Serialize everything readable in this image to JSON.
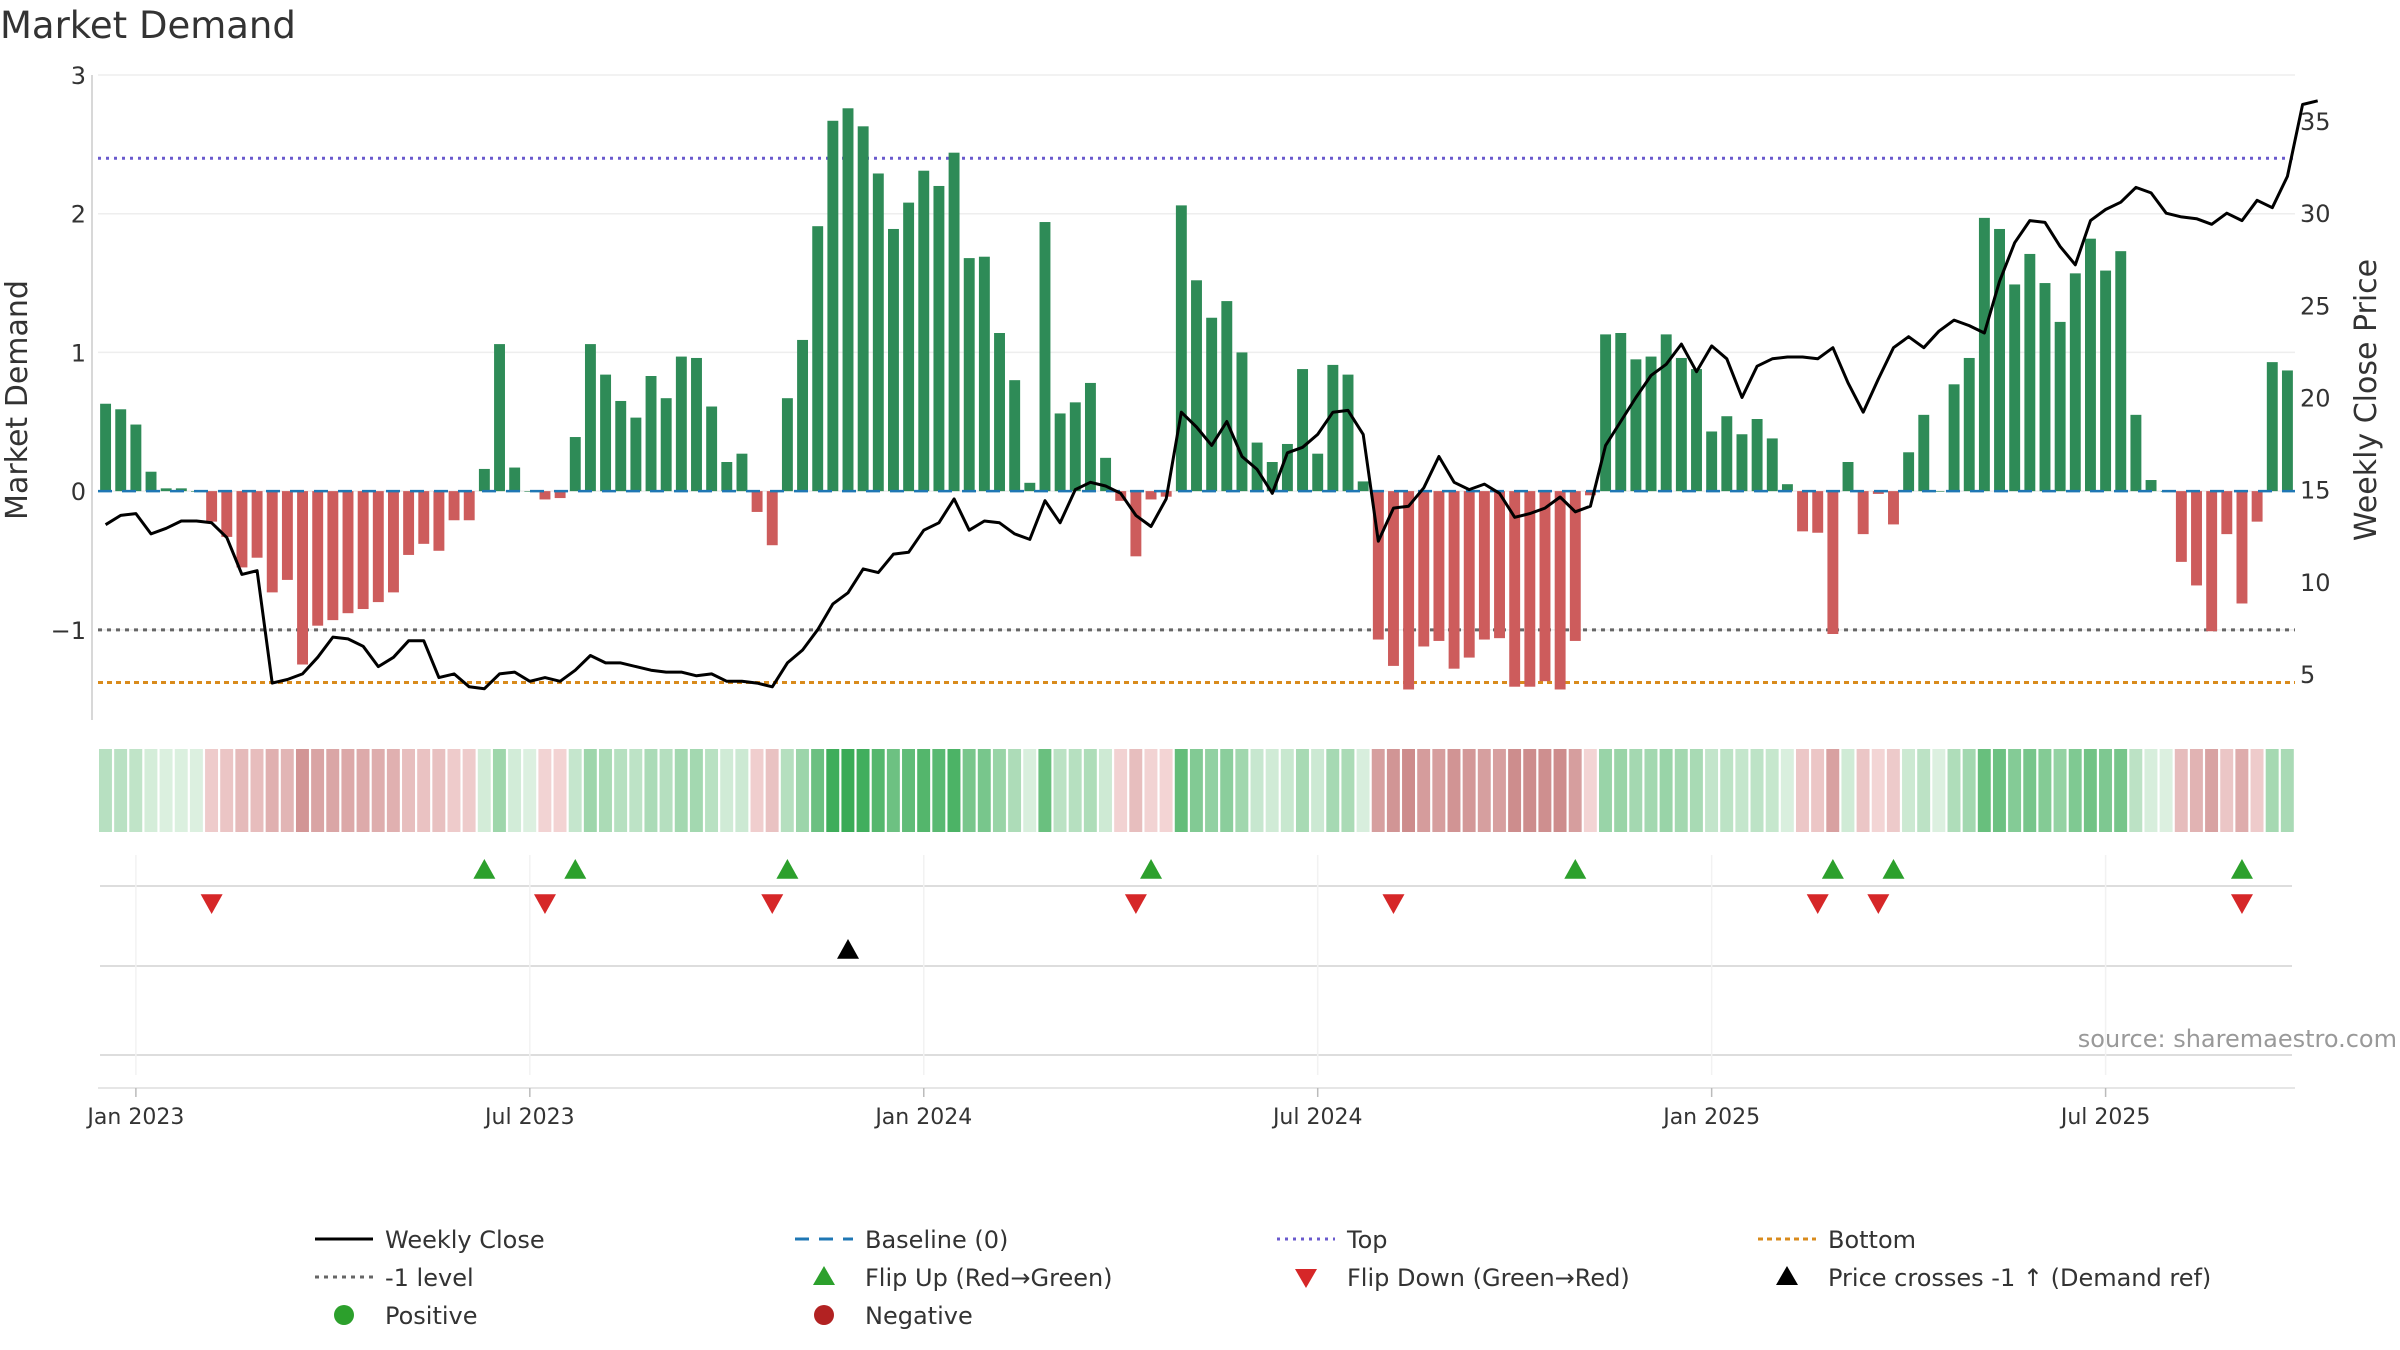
{
  "chart_data": {
    "type": "bar",
    "title": "Market Demand",
    "ylabel_left": "Market Demand",
    "ylabel_right": "Weekly Close Price",
    "source_text": "source: sharemaestro.com",
    "left_axis": {
      "ylim": [
        -1.65,
        3.0
      ],
      "ticks": [
        {
          "v": 3,
          "label": "3"
        },
        {
          "v": 2,
          "label": "2"
        },
        {
          "v": 1,
          "label": "1"
        },
        {
          "v": 0,
          "label": "0"
        },
        {
          "v": -1,
          "label": "−1"
        }
      ]
    },
    "right_axis": {
      "ylim": [
        2.5,
        37.5
      ],
      "ticks": [
        {
          "v": 35,
          "label": "35"
        },
        {
          "v": 30,
          "label": "30"
        },
        {
          "v": 25,
          "label": "25"
        },
        {
          "v": 20,
          "label": "20"
        },
        {
          "v": 15,
          "label": "15"
        },
        {
          "v": 10,
          "label": "10"
        },
        {
          "v": 5,
          "label": "5"
        }
      ]
    },
    "x_ticks": [
      {
        "week": 2,
        "label": "Jan 2023"
      },
      {
        "week": 28,
        "label": "Jul 2023"
      },
      {
        "week": 54,
        "label": "Jan 2024"
      },
      {
        "week": 80,
        "label": "Jul 2024"
      },
      {
        "week": 106,
        "label": "Jan 2025"
      },
      {
        "week": 132,
        "label": "Jul 2025"
      }
    ],
    "reference_lines": {
      "top": 2.4,
      "bottom": -1.38,
      "minus_one": -1.0,
      "baseline": 0
    },
    "demand": [
      0.63,
      0.59,
      0.48,
      0.14,
      0.02,
      0.02,
      0.0,
      -0.22,
      -0.33,
      -0.55,
      -0.48,
      -0.73,
      -0.64,
      -1.25,
      -0.97,
      -0.93,
      -0.88,
      -0.85,
      -0.8,
      -0.73,
      -0.46,
      -0.38,
      -0.43,
      -0.21,
      -0.21,
      0.16,
      1.06,
      0.17,
      0.0,
      -0.06,
      -0.05,
      0.39,
      1.06,
      0.84,
      0.65,
      0.53,
      0.83,
      0.67,
      0.97,
      0.96,
      0.61,
      0.21,
      0.27,
      -0.15,
      -0.39,
      0.67,
      1.09,
      1.91,
      2.67,
      2.76,
      2.63,
      2.29,
      1.89,
      2.08,
      2.31,
      2.2,
      2.44,
      1.68,
      1.69,
      1.14,
      0.8,
      0.06,
      1.94,
      0.56,
      0.64,
      0.78,
      0.24,
      -0.07,
      -0.47,
      -0.06,
      -0.04,
      2.06,
      1.52,
      1.25,
      1.37,
      1.0,
      0.35,
      0.21,
      0.34,
      0.88,
      0.27,
      0.91,
      0.84,
      0.07,
      -1.07,
      -1.26,
      -1.43,
      -1.12,
      -1.08,
      -1.28,
      -1.2,
      -1.07,
      -1.06,
      -1.41,
      -1.41,
      -1.37,
      -1.43,
      -1.08,
      -0.03,
      1.13,
      1.14,
      0.95,
      0.97,
      1.13,
      0.96,
      0.88,
      0.43,
      0.54,
      0.41,
      0.52,
      0.38,
      0.05,
      -0.29,
      -0.3,
      -1.03,
      0.21,
      -0.31,
      -0.02,
      -0.24,
      0.28,
      0.55,
      0.0,
      0.77,
      0.96,
      1.97,
      1.89,
      1.49,
      1.71,
      1.5,
      1.22,
      1.57,
      1.82,
      1.59,
      1.73,
      0.55,
      0.08,
      0.0,
      -0.51,
      -0.68,
      -1.01,
      -0.31,
      -0.81,
      -0.22,
      0.93,
      0.87
    ],
    "weekly_close": [
      13.1,
      13.6,
      13.7,
      12.6,
      12.9,
      13.3,
      13.3,
      13.2,
      12.4,
      10.4,
      10.6,
      4.5,
      4.7,
      5.0,
      5.9,
      7.0,
      6.9,
      6.5,
      5.4,
      5.9,
      6.8,
      6.8,
      4.8,
      5.0,
      4.3,
      4.2,
      5.0,
      5.1,
      4.6,
      4.8,
      4.6,
      5.2,
      6.0,
      5.6,
      5.6,
      5.4,
      5.2,
      5.1,
      5.1,
      4.9,
      5.0,
      4.6,
      4.6,
      4.5,
      4.3,
      5.6,
      6.3,
      7.4,
      8.8,
      9.4,
      10.7,
      10.5,
      11.5,
      11.6,
      12.8,
      13.2,
      14.5,
      12.8,
      13.3,
      13.2,
      12.6,
      12.3,
      14.4,
      13.2,
      15.0,
      15.4,
      15.2,
      14.8,
      13.6,
      13.0,
      14.5,
      19.2,
      18.4,
      17.4,
      18.7,
      16.8,
      16.1,
      14.8,
      17.0,
      17.3,
      18.0,
      19.2,
      19.3,
      18.0,
      12.2,
      14.0,
      14.1,
      15.1,
      16.8,
      15.4,
      15.0,
      15.3,
      14.8,
      13.5,
      13.7,
      14.0,
      14.6,
      13.8,
      14.1,
      17.4,
      18.7,
      20.0,
      21.2,
      21.8,
      22.9,
      21.4,
      22.8,
      22.1,
      20.0,
      21.7,
      22.1,
      22.2,
      22.2,
      22.1,
      22.7,
      20.8,
      19.2,
      21.0,
      22.7,
      23.3,
      22.7,
      23.6,
      24.2,
      23.9,
      23.5,
      26.3,
      28.4,
      29.6,
      29.5,
      28.2,
      27.2,
      29.6,
      30.2,
      30.6,
      31.4,
      31.1,
      30.0,
      29.8,
      29.7,
      29.4,
      30.0,
      29.6,
      30.7,
      30.3,
      32.0,
      35.9,
      36.1
    ],
    "flip_up_weeks": [
      25,
      31,
      45,
      69,
      97,
      114,
      118,
      141
    ],
    "flip_down_weeks": [
      7,
      29,
      44,
      68,
      85,
      113,
      117,
      141
    ],
    "price_cross_weeks": [
      49
    ],
    "legend": [
      {
        "label": "Weekly Close",
        "kind": "line"
      },
      {
        "label": "Baseline (0)",
        "kind": "dash"
      },
      {
        "label": "Top",
        "kind": "dot-blue"
      },
      {
        "label": "Bottom",
        "kind": "dot-orange"
      },
      {
        "label": "-1 level",
        "kind": "dot-gray"
      },
      {
        "label": "Flip Up (Red→Green)",
        "kind": "tri-up-green"
      },
      {
        "label": "Flip Down (Green→Red)",
        "kind": "tri-down-red"
      },
      {
        "label": "Price crosses -1 ↑ (Demand ref)",
        "kind": "tri-up-black"
      },
      {
        "label": "Positive",
        "kind": "dot-green"
      },
      {
        "label": "Negative",
        "kind": "dot-red"
      }
    ]
  },
  "colors": {
    "positive": "#2e8b57",
    "negative": "#cd5c5c",
    "flip_up": "#2ca02c",
    "flip_down": "#d62728",
    "top_line": "#6a5acd",
    "bottom_line": "#d98b1c",
    "minus_one_line": "#666666",
    "baseline": "#1f77b4",
    "price": "#000000"
  }
}
